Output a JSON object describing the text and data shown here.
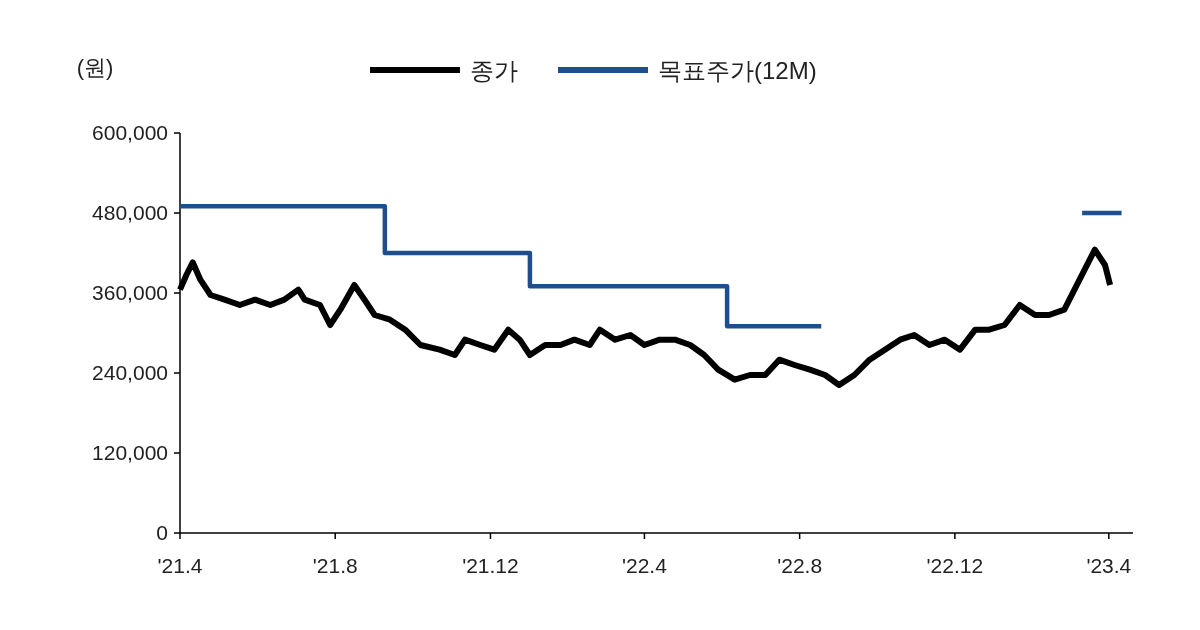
{
  "chart_data": {
    "type": "line",
    "ylabel": "(원)",
    "legend": "top",
    "xlim": [
      "2021-04-01",
      "2023-04-20"
    ],
    "xticks": [
      {
        "value": "2021-04-01",
        "label": "'21.4"
      },
      {
        "value": "2021-08-01",
        "label": "'21.8"
      },
      {
        "value": "2021-12-01",
        "label": "'21.12"
      },
      {
        "value": "2022-04-01",
        "label": "'22.4"
      },
      {
        "value": "2022-08-01",
        "label": "'22.8"
      },
      {
        "value": "2022-12-01",
        "label": "'22.12"
      },
      {
        "value": "2023-04-01",
        "label": "'23.4"
      }
    ],
    "ylim": [
      0,
      600000
    ],
    "yticks": [
      {
        "value": 0,
        "label": "0"
      },
      {
        "value": 120000,
        "label": "120,000"
      },
      {
        "value": 240000,
        "label": "240,000"
      },
      {
        "value": 360000,
        "label": "360,000"
      },
      {
        "value": 480000,
        "label": "480,000"
      },
      {
        "value": 600000,
        "label": "600,000"
      }
    ],
    "series": [
      {
        "name": "종가",
        "color": "#000000",
        "x": [
          "2021-04-01",
          "2021-04-06",
          "2021-04-11",
          "2021-04-17",
          "2021-04-25",
          "2021-05-06",
          "2021-05-18",
          "2021-05-30",
          "2021-06-11",
          "2021-06-22",
          "2021-07-03",
          "2021-07-08",
          "2021-07-20",
          "2021-07-28",
          "2021-08-05",
          "2021-08-16",
          "2021-08-24",
          "2021-09-01",
          "2021-09-13",
          "2021-09-25",
          "2021-10-07",
          "2021-10-22",
          "2021-11-03",
          "2021-11-11",
          "2021-11-23",
          "2021-12-04",
          "2021-12-15",
          "2021-12-24",
          "2022-01-01",
          "2022-01-13",
          "2022-01-25",
          "2022-02-05",
          "2022-02-17",
          "2022-02-25",
          "2022-03-09",
          "2022-03-21",
          "2022-04-01",
          "2022-04-13",
          "2022-04-25",
          "2022-05-07",
          "2022-05-18",
          "2022-05-29",
          "2022-06-11",
          "2022-06-23",
          "2022-07-05",
          "2022-07-16",
          "2022-07-28",
          "2022-08-09",
          "2022-08-21",
          "2022-09-01",
          "2022-09-13",
          "2022-09-25",
          "2022-10-07",
          "2022-10-19",
          "2022-10-30",
          "2022-11-11",
          "2022-11-23",
          "2022-12-05",
          "2022-12-17",
          "2022-12-28",
          "2023-01-09",
          "2023-01-21",
          "2023-02-02",
          "2023-02-13",
          "2023-02-25",
          "2023-03-05",
          "2023-03-13",
          "2023-03-21",
          "2023-03-29",
          "2023-04-02"
        ],
        "values": [
          365000,
          387000,
          406000,
          380000,
          357000,
          350000,
          342000,
          350000,
          342000,
          350000,
          365000,
          350000,
          342000,
          312000,
          335000,
          372000,
          350000,
          327000,
          320000,
          305000,
          282000,
          275000,
          267000,
          290000,
          282000,
          275000,
          305000,
          290000,
          267000,
          282000,
          282000,
          290000,
          282000,
          305000,
          290000,
          297000,
          282000,
          290000,
          290000,
          282000,
          267000,
          245000,
          230000,
          237000,
          237000,
          260000,
          252000,
          245000,
          237000,
          222000,
          237000,
          260000,
          275000,
          290000,
          297000,
          282000,
          290000,
          275000,
          305000,
          305000,
          312000,
          342000,
          327000,
          327000,
          335000,
          365000,
          395000,
          425000,
          402000,
          372000
        ]
      },
      {
        "name": "목표주가(12M)",
        "color": "#1f4e8c",
        "type": "step",
        "x": [
          "2021-04-01",
          "2021-09-09",
          "2022-01-01",
          "2022-06-05",
          "2022-08-18",
          "2023-03-11",
          "2023-04-11"
        ],
        "values": [
          490000,
          420000,
          370000,
          310000,
          null,
          480000,
          480000
        ]
      }
    ]
  }
}
